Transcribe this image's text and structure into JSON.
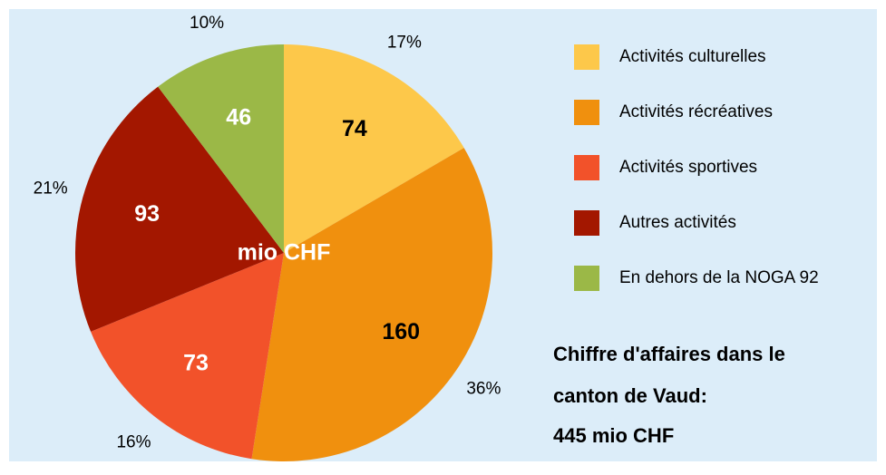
{
  "chart_data": {
    "type": "pie",
    "categories": [
      "Activités culturelles",
      "Activités récréatives",
      "Activités sportives",
      "Autres activités",
      "En dehors de la NOGA 92"
    ],
    "values": [
      74,
      160,
      73,
      93,
      46
    ],
    "percentage_labels": [
      "17%",
      "36%",
      "16%",
      "21%",
      "10%"
    ],
    "colors": [
      "#fdc84a",
      "#f0900e",
      "#f2522a",
      "#a31700",
      "#9bb847"
    ],
    "label_colors": [
      "#000000",
      "#000000",
      "#ffffff",
      "#ffffff",
      "#ffffff"
    ],
    "center_label": "mio CHF",
    "annotation": [
      "Chiffre d'affaires  dans le",
      "canton de Vaud:",
      "445 mio CHF"
    ],
    "legend": "right"
  }
}
